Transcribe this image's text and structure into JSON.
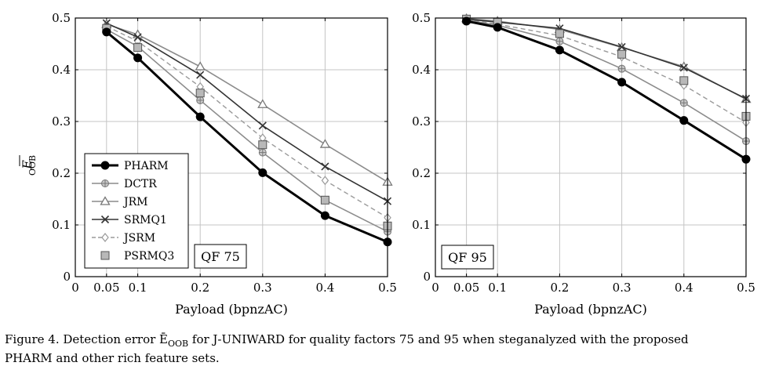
{
  "chart_data": [
    {
      "type": "line",
      "xlabel": "Payload (bpnzAC)",
      "ylabel_main": "E",
      "ylabel_sub": "OOB",
      "xlim": [
        0,
        0.5
      ],
      "ylim": [
        0,
        0.5
      ],
      "xticks": [
        "0",
        "0.05",
        "0.1",
        "0.2",
        "0.3",
        "0.4",
        "0.5"
      ],
      "yticks": [
        "0",
        "0.1",
        "0.2",
        "0.3",
        "0.4",
        "0.5"
      ],
      "grid": true,
      "legend_position": "lower-left",
      "annotation": "QF 75",
      "x": [
        0.05,
        0.1,
        0.2,
        0.3,
        0.4,
        0.5
      ],
      "series": [
        {
          "name": "PHARM",
          "values": [
            0.473,
            0.423,
            0.309,
            0.201,
            0.118,
            0.067
          ]
        },
        {
          "name": "DCTR",
          "values": [
            0.478,
            0.445,
            0.341,
            0.24,
            0.148,
            0.087
          ]
        },
        {
          "name": "JRM",
          "values": [
            0.488,
            0.468,
            0.406,
            0.333,
            0.256,
            0.183
          ]
        },
        {
          "name": "SRMQ1",
          "values": [
            0.49,
            0.463,
            0.39,
            0.292,
            0.213,
            0.146
          ]
        },
        {
          "name": "JSRM",
          "values": [
            0.484,
            0.455,
            0.367,
            0.268,
            0.186,
            0.114
          ]
        },
        {
          "name": "PSRMQ3",
          "values": [
            0.48,
            0.443,
            0.355,
            0.255,
            0.148,
            0.098
          ]
        }
      ]
    },
    {
      "type": "line",
      "xlabel": "Payload (bpnzAC)",
      "xlim": [
        0,
        0.5
      ],
      "ylim": [
        0,
        0.5
      ],
      "xticks": [
        "0",
        "0.05",
        "0.1",
        "0.2",
        "0.3",
        "0.4",
        "0.5"
      ],
      "yticks": [
        "0",
        "0.1",
        "0.2",
        "0.3",
        "0.4",
        "0.5"
      ],
      "grid": true,
      "annotation": "QF 95",
      "x": [
        0.05,
        0.1,
        0.2,
        0.3,
        0.4,
        0.5
      ],
      "series": [
        {
          "name": "PHARM",
          "values": [
            0.494,
            0.482,
            0.438,
            0.376,
            0.302,
            0.227
          ]
        },
        {
          "name": "DCTR",
          "values": [
            0.496,
            0.486,
            0.455,
            0.402,
            0.336,
            0.262
          ]
        },
        {
          "name": "JRM",
          "values": [
            0.499,
            0.494,
            0.478,
            0.443,
            0.406,
            0.343
          ]
        },
        {
          "name": "SRMQ1",
          "values": [
            0.498,
            0.492,
            0.48,
            0.444,
            0.404,
            0.344
          ]
        },
        {
          "name": "JSRM",
          "values": [
            0.497,
            0.488,
            0.466,
            0.425,
            0.37,
            0.298
          ]
        },
        {
          "name": "PSRMQ3",
          "values": [
            0.498,
            0.492,
            0.47,
            0.43,
            0.379,
            0.31
          ]
        }
      ]
    }
  ],
  "styles": {
    "PHARM": {
      "color": "#000000",
      "width": 3,
      "dash": "",
      "marker": "circle-filled"
    },
    "DCTR": {
      "color": "#8c8c8c",
      "width": 1.6,
      "dash": "",
      "marker": "circle-plus"
    },
    "JRM": {
      "color": "#8c8c8c",
      "width": 1.6,
      "dash": "",
      "marker": "triangle-open"
    },
    "SRMQ1": {
      "color": "#333333",
      "width": 1.6,
      "dash": "",
      "marker": "cross"
    },
    "JSRM": {
      "color": "#9a9a9a",
      "width": 1.4,
      "dash": "6 4",
      "marker": "diamond-open"
    },
    "PSRMQ3": {
      "color": "#9a9a9a",
      "width": 0,
      "dash": "",
      "marker": "square-filled"
    }
  },
  "caption": {
    "line1": "Figure 4. Detection error Ē",
    "line1_sub": "OOB",
    "line1_rest": " for J-UNIWARD for quality factors 75 and 95 when steganalyzed with the proposed",
    "line2": "PHARM and other rich feature sets."
  }
}
